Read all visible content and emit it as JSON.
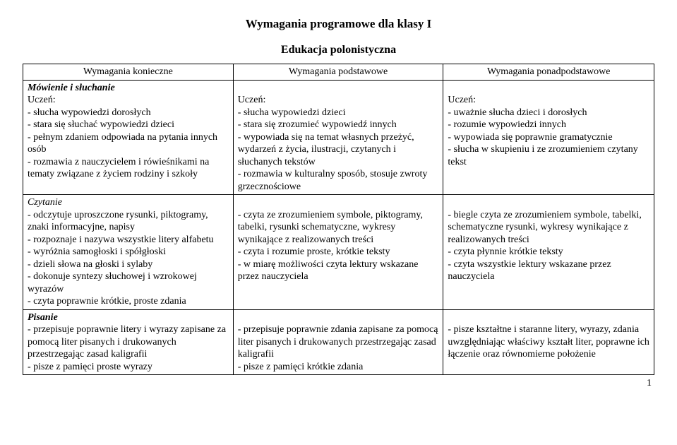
{
  "title": "Wymagania programowe dla klasy I",
  "subtitle": "Edukacja polonistyczna",
  "page_number": "1",
  "headers": {
    "col1": "Wymagania konieczne",
    "col2": "Wymagania podstawowe",
    "col3": "Wymagania ponadpodstawowe"
  },
  "sections": {
    "mowie": {
      "label": "Mówienie i słuchanie",
      "col1": "Uczeń:\n- słucha wypowiedzi dorosłych\n- stara się słuchać wypowiedzi dzieci\n- pełnym zdaniem odpowiada na pytania innych osób\n- rozmawia z nauczycielem i rówieśnikami na tematy związane z życiem rodziny i szkoły",
      "col2": "Uczeń:\n- słucha wypowiedzi dzieci\n- stara się zrozumieć wypowiedź innych\n- wypowiada się na temat własnych przeżyć, wydarzeń z życia, ilustracji, czytanych i  słuchanych tekstów\n- rozmawia w kulturalny sposób, stosuje zwroty grzecznościowe",
      "col3": "Uczeń:\n- uważnie słucha dzieci i dorosłych\n- rozumie wypowiedzi innych\n- wypowiada się poprawnie gramatycznie\n- słucha w skupieniu i ze zrozumieniem czytany tekst"
    },
    "czytanie": {
      "label": "Czytanie",
      "col1": "- odczytuje uproszczone rysunki, piktogramy, znaki informacyjne, napisy\n- rozpoznaje i nazywa wszystkie litery alfabetu\n- wyróżnia samogłoski i spółgłoski\n- dzieli słowa na głoski i sylaby\n- dokonuje syntezy słuchowej i wzrokowej wyrazów\n- czyta poprawnie krótkie, proste zdania",
      "col2": "- czyta ze zrozumieniem symbole, piktogramy, tabelki, rysunki schematyczne, wykresy wynikające z realizowanych treści\n- czyta i rozumie proste, krótkie teksty\n- w miarę możliwości czyta lektury wskazane przez nauczyciela",
      "col3": "- biegle czyta ze zrozumieniem symbole, tabelki, schematyczne rysunki, wykresy wynikające z realizowanych treści\n- czyta płynnie krótkie teksty\n- czyta wszystkie lektury wskazane przez nauczyciela"
    },
    "pisanie": {
      "label": "Pisanie",
      "col1": "- przepisuje poprawnie litery i wyrazy zapisane za pomocą liter pisanych i drukowanych przestrzegając zasad kaligrafii\n- pisze z pamięci proste wyrazy",
      "col2": "- przepisuje poprawnie zdania zapisane za pomocą liter pisanych i drukowanych przestrzegając zasad kaligrafii\n- pisze z pamięci krótkie zdania",
      "col3": "- pisze kształtne i staranne litery, wyrazy, zdania uwzględniając właściwy kształt liter, poprawne ich łączenie oraz równomierne położenie"
    }
  },
  "style": {
    "background_color": "#ffffff",
    "text_color": "#000000",
    "border_color": "#000000",
    "font_family": "Times New Roman",
    "body_fontsize": 14,
    "title_fontsize": 17,
    "subtitle_fontsize": 16,
    "col_widths_pct": [
      33.3,
      33.3,
      33.4
    ]
  }
}
